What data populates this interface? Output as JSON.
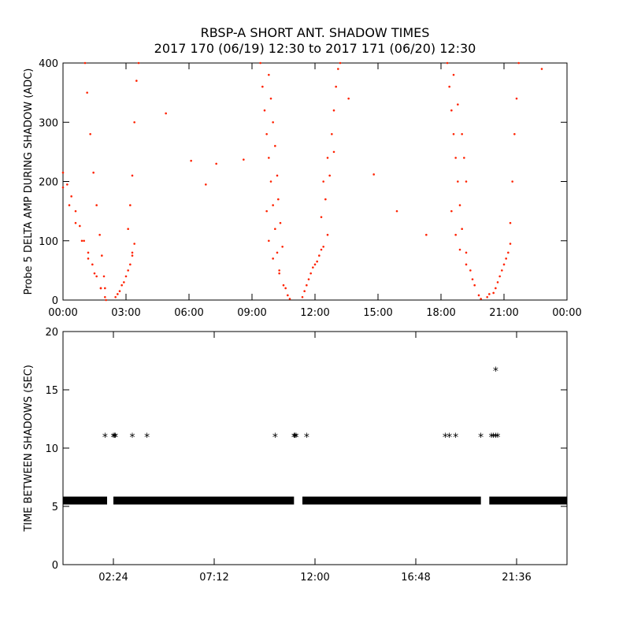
{
  "header": {
    "title": "RBSP-A SHORT ANT. SHADOW TIMES",
    "subtitle": "2017 170 (06/19) 12:30 to 2017 171 (06/20) 12:30"
  },
  "colors": {
    "delta_amp": "#ff2200",
    "shadow_interval": "#000000"
  },
  "chart_data": [
    {
      "type": "scatter",
      "ylabel": "Probe 5 DELTA AMP DURING SHADOW (ADC)",
      "xlabel": "",
      "xlim": [
        0,
        24
      ],
      "ylim": [
        0,
        400
      ],
      "xticks": [
        {
          "v": 0,
          "label": "00:00"
        },
        {
          "v": 3,
          "label": "03:00"
        },
        {
          "v": 6,
          "label": "06:00"
        },
        {
          "v": 9,
          "label": "09:00"
        },
        {
          "v": 12,
          "label": "12:00"
        },
        {
          "v": 15,
          "label": "15:00"
        },
        {
          "v": 18,
          "label": "18:00"
        },
        {
          "v": 21,
          "label": "21:00"
        },
        {
          "v": 24,
          "label": "00:00"
        }
      ],
      "yticks": [
        {
          "v": 0,
          "label": "0"
        },
        {
          "v": 100,
          "label": "100"
        },
        {
          "v": 200,
          "label": "200"
        },
        {
          "v": 300,
          "label": "300"
        },
        {
          "v": 400,
          "label": "400"
        }
      ],
      "x_unit": "hours",
      "series": [
        {
          "points": [
            [
              0.0,
              215
            ],
            [
              0.2,
              195
            ],
            [
              0.4,
              175
            ],
            [
              0.6,
              150
            ],
            [
              0.8,
              125
            ],
            [
              1.0,
              100
            ],
            [
              1.2,
              80
            ],
            [
              1.4,
              60
            ],
            [
              1.6,
              40
            ],
            [
              1.8,
              20
            ],
            [
              2.0,
              5
            ],
            [
              2.05,
              0
            ],
            [
              0.0,
              190
            ],
            [
              0.3,
              160
            ],
            [
              0.6,
              130
            ],
            [
              0.9,
              100
            ],
            [
              1.2,
              70
            ],
            [
              1.5,
              45
            ],
            [
              1.8,
              20
            ],
            [
              1.05,
              405
            ],
            [
              1.15,
              350
            ],
            [
              1.3,
              280
            ],
            [
              1.45,
              215
            ],
            [
              1.6,
              160
            ],
            [
              1.75,
              110
            ],
            [
              1.85,
              75
            ],
            [
              1.95,
              40
            ],
            [
              2.0,
              20
            ],
            [
              2.5,
              5
            ],
            [
              2.7,
              15
            ],
            [
              2.9,
              30
            ],
            [
              3.1,
              50
            ],
            [
              3.3,
              75
            ],
            [
              3.4,
              95
            ],
            [
              2.6,
              10
            ],
            [
              2.8,
              25
            ],
            [
              3.0,
              40
            ],
            [
              3.2,
              60
            ],
            [
              3.3,
              80
            ],
            [
              3.1,
              120
            ],
            [
              3.2,
              160
            ],
            [
              3.3,
              210
            ],
            [
              3.4,
              300
            ],
            [
              3.5,
              370
            ],
            [
              3.6,
              400
            ],
            [
              4.9,
              315
            ],
            [
              6.1,
              235
            ],
            [
              7.3,
              230
            ],
            [
              8.6,
              237
            ],
            [
              6.8,
              195
            ],
            [
              9.4,
              400
            ],
            [
              9.5,
              360
            ],
            [
              9.6,
              320
            ],
            [
              9.7,
              280
            ],
            [
              9.8,
              240
            ],
            [
              9.9,
              200
            ],
            [
              10.0,
              160
            ],
            [
              10.1,
              120
            ],
            [
              10.2,
              80
            ],
            [
              10.3,
              50
            ],
            [
              10.5,
              25
            ],
            [
              10.7,
              8
            ],
            [
              10.8,
              2
            ],
            [
              9.8,
              380
            ],
            [
              9.9,
              340
            ],
            [
              10.0,
              300
            ],
            [
              10.1,
              260
            ],
            [
              10.2,
              210
            ],
            [
              10.25,
              170
            ],
            [
              10.35,
              130
            ],
            [
              10.45,
              90
            ],
            [
              9.7,
              150
            ],
            [
              9.8,
              100
            ],
            [
              10.0,
              70
            ],
            [
              10.3,
              45
            ],
            [
              10.6,
              20
            ],
            [
              11.4,
              5
            ],
            [
              11.6,
              25
            ],
            [
              11.8,
              45
            ],
            [
              12.0,
              60
            ],
            [
              12.2,
              75
            ],
            [
              12.4,
              90
            ],
            [
              12.6,
              110
            ],
            [
              11.5,
              15
            ],
            [
              11.7,
              35
            ],
            [
              11.9,
              55
            ],
            [
              12.1,
              65
            ],
            [
              12.3,
              85
            ],
            [
              12.4,
              200
            ],
            [
              12.6,
              240
            ],
            [
              12.8,
              280
            ],
            [
              12.9,
              320
            ],
            [
              13.0,
              360
            ],
            [
              13.1,
              390
            ],
            [
              13.2,
              405
            ],
            [
              12.3,
              140
            ],
            [
              12.5,
              170
            ],
            [
              12.7,
              210
            ],
            [
              12.9,
              250
            ],
            [
              13.6,
              340
            ],
            [
              14.8,
              212
            ],
            [
              15.9,
              150
            ],
            [
              17.3,
              110
            ],
            [
              18.3,
              400
            ],
            [
              18.4,
              360
            ],
            [
              18.5,
              320
            ],
            [
              18.6,
              280
            ],
            [
              18.7,
              240
            ],
            [
              18.8,
              200
            ],
            [
              18.9,
              160
            ],
            [
              19.0,
              120
            ],
            [
              19.2,
              80
            ],
            [
              19.4,
              50
            ],
            [
              19.6,
              25
            ],
            [
              19.8,
              8
            ],
            [
              19.9,
              2
            ],
            [
              18.6,
              380
            ],
            [
              18.8,
              330
            ],
            [
              19.0,
              280
            ],
            [
              19.1,
              240
            ],
            [
              19.2,
              200
            ],
            [
              18.5,
              150
            ],
            [
              18.7,
              110
            ],
            [
              18.9,
              85
            ],
            [
              19.2,
              60
            ],
            [
              19.5,
              35
            ],
            [
              20.2,
              5
            ],
            [
              20.5,
              12
            ],
            [
              20.7,
              30
            ],
            [
              20.9,
              50
            ],
            [
              21.1,
              70
            ],
            [
              21.3,
              95
            ],
            [
              20.3,
              10
            ],
            [
              20.6,
              20
            ],
            [
              20.8,
              40
            ],
            [
              21.0,
              60
            ],
            [
              21.2,
              80
            ],
            [
              21.3,
              130
            ],
            [
              21.4,
              200
            ],
            [
              21.5,
              280
            ],
            [
              21.6,
              340
            ],
            [
              21.7,
              400
            ],
            [
              22.8,
              390
            ]
          ]
        }
      ]
    },
    {
      "type": "scatter",
      "ylabel": "TIME BETWEEN SHADOWS (SEC)",
      "xlabel": "",
      "xlim": [
        0,
        24
      ],
      "ylim": [
        0,
        20
      ],
      "xticks": [
        {
          "v": 2.4,
          "label": "02:24"
        },
        {
          "v": 7.2,
          "label": "07:12"
        },
        {
          "v": 12.0,
          "label": "12:00"
        },
        {
          "v": 16.8,
          "label": "16:48"
        },
        {
          "v": 21.6,
          "label": "21:36"
        }
      ],
      "yticks": [
        {
          "v": 0,
          "label": "0"
        },
        {
          "v": 5,
          "label": "5"
        },
        {
          "v": 10,
          "label": "10"
        },
        {
          "v": 15,
          "label": "15"
        },
        {
          "v": 20,
          "label": "20"
        }
      ],
      "x_unit": "hours",
      "baseline_segments": [
        [
          0.0,
          2.1,
          5.5
        ],
        [
          2.4,
          11.0,
          5.5
        ],
        [
          11.4,
          19.9,
          5.5
        ],
        [
          20.3,
          24.0,
          5.5
        ]
      ],
      "series": [
        {
          "points": [
            [
              2.0,
              11
            ],
            [
              2.4,
              11
            ],
            [
              2.45,
              11
            ],
            [
              2.5,
              11
            ],
            [
              3.3,
              11
            ],
            [
              4.0,
              11
            ],
            [
              10.1,
              11
            ],
            [
              11.0,
              11
            ],
            [
              11.05,
              11
            ],
            [
              11.1,
              11
            ],
            [
              11.6,
              11
            ],
            [
              18.2,
              11
            ],
            [
              18.4,
              11
            ],
            [
              18.7,
              11
            ],
            [
              19.9,
              11
            ],
            [
              20.4,
              11
            ],
            [
              20.5,
              11
            ],
            [
              20.6,
              11
            ],
            [
              20.7,
              11
            ],
            [
              20.6,
              16.7
            ]
          ]
        }
      ]
    }
  ]
}
